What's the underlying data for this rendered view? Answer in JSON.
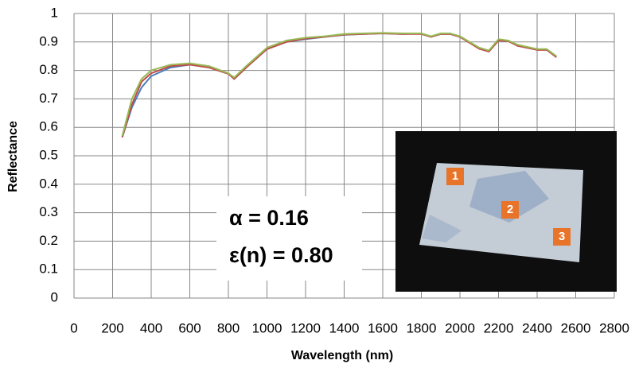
{
  "chart_data": {
    "type": "line",
    "x_label": "Wavelength (nm)",
    "y_label": "Reflectance",
    "x": [
      250,
      300,
      350,
      400,
      500,
      600,
      700,
      800,
      830,
      900,
      1000,
      1100,
      1200,
      1300,
      1400,
      1500,
      1600,
      1700,
      1800,
      1850,
      1900,
      1950,
      2000,
      2100,
      2150,
      2200,
      2250,
      2300,
      2400,
      2450,
      2500
    ],
    "series": [
      {
        "color": "#4a7ebb",
        "values": [
          0.565,
          0.67,
          0.74,
          0.78,
          0.81,
          0.82,
          0.812,
          0.79,
          0.77,
          0.815,
          0.875,
          0.9,
          0.91,
          0.918,
          0.925,
          0.928,
          0.93,
          0.928,
          0.93,
          0.918,
          0.928,
          0.928,
          0.918,
          0.878,
          0.868,
          0.905,
          0.905,
          0.888,
          0.873,
          0.873,
          0.848
        ]
      },
      {
        "color": "#be4b48",
        "values": [
          0.565,
          0.68,
          0.76,
          0.79,
          0.815,
          0.82,
          0.81,
          0.788,
          0.77,
          0.815,
          0.875,
          0.9,
          0.912,
          0.918,
          0.926,
          0.928,
          0.93,
          0.928,
          0.928,
          0.918,
          0.928,
          0.928,
          0.918,
          0.876,
          0.866,
          0.905,
          0.903,
          0.886,
          0.872,
          0.872,
          0.846
        ]
      },
      {
        "color": "#98b954",
        "values": [
          0.57,
          0.7,
          0.77,
          0.8,
          0.82,
          0.825,
          0.815,
          0.79,
          0.775,
          0.82,
          0.88,
          0.905,
          0.915,
          0.92,
          0.928,
          0.93,
          0.932,
          0.93,
          0.93,
          0.92,
          0.93,
          0.93,
          0.92,
          0.88,
          0.87,
          0.91,
          0.905,
          0.89,
          0.875,
          0.875,
          0.85
        ]
      }
    ],
    "xlim": [
      0,
      2800
    ],
    "xticks": [
      0,
      200,
      400,
      600,
      800,
      1000,
      1200,
      1400,
      1600,
      1800,
      2000,
      2200,
      2400,
      2600,
      2800
    ],
    "ylim": [
      0,
      1
    ],
    "yticks": [
      0,
      0.1,
      0.2,
      0.3,
      0.4,
      0.5,
      0.6,
      0.7,
      0.8,
      0.9,
      1
    ],
    "grid": true,
    "annotations": [
      "α = 0.16",
      "ε(n) = 0.80"
    ],
    "inset_labels": [
      "1",
      "2",
      "3"
    ]
  }
}
